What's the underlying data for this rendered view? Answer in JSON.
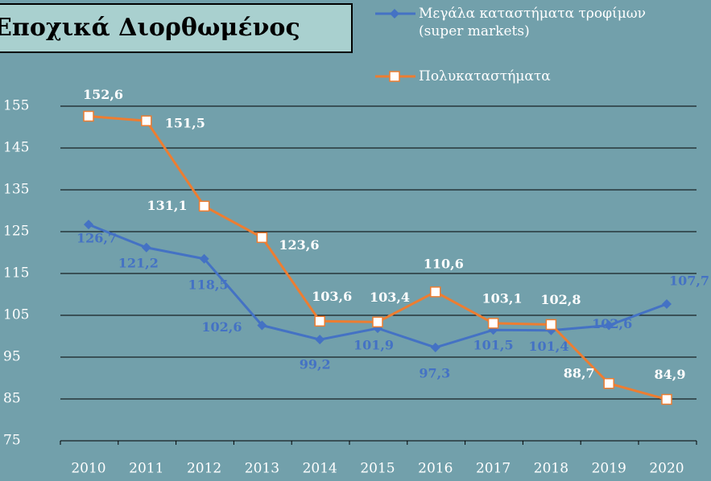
{
  "chart_data": {
    "type": "line",
    "title": "Εποχικά Διορθωμένος",
    "categories": [
      "2010",
      "2011",
      "2012",
      "2013",
      "2014",
      "2015",
      "2016",
      "2017",
      "2018",
      "2019",
      "2020"
    ],
    "series": [
      {
        "name": "Μεγάλα καταστήματα τροφίμων (super markets)",
        "color": "#4472c4",
        "marker": "diamond",
        "values": [
          126.7,
          121.2,
          118.5,
          102.6,
          99.2,
          101.9,
          97.3,
          101.5,
          101.4,
          102.6,
          107.7
        ],
        "value_labels": [
          "126,7",
          "121,2",
          "118,5",
          "102,6",
          "99,2",
          "101,9",
          "97,3",
          "101,5",
          "101,4",
          "102,6",
          "107,7"
        ]
      },
      {
        "name": "Πολυκαταστήματα",
        "color": "#ed7d31",
        "marker": "square",
        "values": [
          152.6,
          151.5,
          131.1,
          123.6,
          103.6,
          103.4,
          110.6,
          103.1,
          102.8,
          88.7,
          84.9
        ],
        "value_labels": [
          "152,6",
          "151,5",
          "131,1",
          "123,6",
          "103,6",
          "103,4",
          "110,6",
          "103,1",
          "102,8",
          "88,7",
          "84,9"
        ]
      }
    ],
    "ylim": [
      75,
      160
    ],
    "yticks": [
      75,
      85,
      95,
      105,
      115,
      125,
      135,
      145,
      155
    ],
    "grid": true
  }
}
